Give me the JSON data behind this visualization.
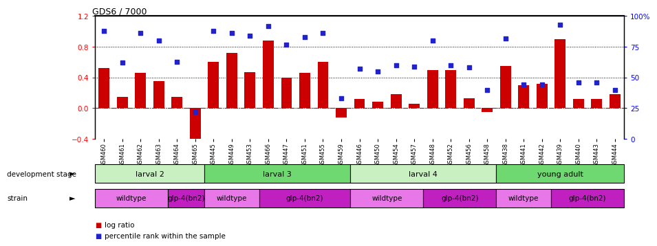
{
  "title": "GDS6 / 7000",
  "samples": [
    "GSM460",
    "GSM461",
    "GSM462",
    "GSM463",
    "GSM464",
    "GSM465",
    "GSM445",
    "GSM449",
    "GSM453",
    "GSM466",
    "GSM447",
    "GSM451",
    "GSM455",
    "GSM459",
    "GSM446",
    "GSM450",
    "GSM454",
    "GSM457",
    "GSM448",
    "GSM452",
    "GSM456",
    "GSM458",
    "GSM438",
    "GSM441",
    "GSM442",
    "GSM439",
    "GSM440",
    "GSM443",
    "GSM444"
  ],
  "log_ratio": [
    0.52,
    0.15,
    0.46,
    0.35,
    0.15,
    -0.48,
    0.6,
    0.72,
    0.47,
    0.88,
    0.4,
    0.46,
    0.6,
    -0.12,
    0.12,
    0.08,
    0.18,
    0.06,
    0.5,
    0.5,
    0.13,
    -0.05,
    0.55,
    0.3,
    0.32,
    0.9,
    0.12,
    0.12,
    0.18
  ],
  "percentile": [
    88,
    62,
    86,
    80,
    63,
    22,
    88,
    86,
    84,
    92,
    77,
    83,
    86,
    33,
    57,
    55,
    60,
    59,
    80,
    60,
    58,
    40,
    82,
    44,
    44,
    93,
    46,
    46,
    40
  ],
  "dev_stages": [
    {
      "label": "larval 2",
      "start": 0,
      "end": 6,
      "color": "#c8f0c0"
    },
    {
      "label": "larval 3",
      "start": 6,
      "end": 14,
      "color": "#70d870"
    },
    {
      "label": "larval 4",
      "start": 14,
      "end": 22,
      "color": "#c8f0c0"
    },
    {
      "label": "young adult",
      "start": 22,
      "end": 29,
      "color": "#70d870"
    }
  ],
  "strains": [
    {
      "label": "wildtype",
      "start": 0,
      "end": 4,
      "color": "#e878e8"
    },
    {
      "label": "glp-4(bn2)",
      "start": 4,
      "end": 6,
      "color": "#c020c0"
    },
    {
      "label": "wildtype",
      "start": 6,
      "end": 9,
      "color": "#e878e8"
    },
    {
      "label": "glp-4(bn2)",
      "start": 9,
      "end": 14,
      "color": "#c020c0"
    },
    {
      "label": "wildtype",
      "start": 14,
      "end": 18,
      "color": "#e878e8"
    },
    {
      "label": "glp-4(bn2)",
      "start": 18,
      "end": 22,
      "color": "#c020c0"
    },
    {
      "label": "wildtype",
      "start": 22,
      "end": 25,
      "color": "#e878e8"
    },
    {
      "label": "glp-4(bn2)",
      "start": 25,
      "end": 29,
      "color": "#c020c0"
    }
  ],
  "bar_color": "#cc0000",
  "scatter_color": "#2222cc",
  "ylim_left": [
    -0.4,
    1.2
  ],
  "ylim_right": [
    0,
    100
  ],
  "left_yticks": [
    -0.4,
    0.0,
    0.4,
    0.8,
    1.2
  ],
  "right_yticks": [
    0,
    25,
    50,
    75,
    100
  ],
  "right_yticklabels": [
    "0",
    "25",
    "50",
    "75",
    "100%"
  ]
}
